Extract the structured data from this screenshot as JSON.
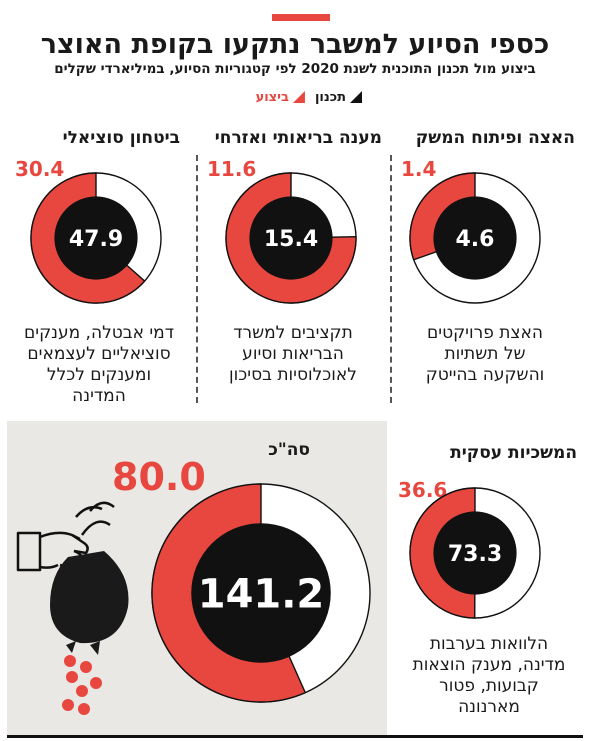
{
  "header": {
    "title": "כספי הסיוע למשבר נתקעו בקופת האוצר",
    "subtitle": "ביצוע מול תכנון התוכנית לשנת 2020 לפי קטגוריות הסיוע, במיליארדי שקלים"
  },
  "legend": {
    "planned": "תכנון",
    "executed": "ביצוע"
  },
  "colors": {
    "executed": "#e8473f",
    "planned": "#111111",
    "track": "#ffffff"
  },
  "panels": [
    {
      "id": "social",
      "title": "ביטחון סוציאלי",
      "planned": "47.9",
      "executed": "30.4",
      "description": [
        "דמי אבטלה, מענקים",
        "סוציאליים לעצמאים",
        "ומענקים לכלל",
        "המדינה"
      ]
    },
    {
      "id": "health",
      "title": "מענה בריאותי ואזרחי",
      "planned": "15.4",
      "executed": "11.6",
      "description": [
        "תקציבים למשרד",
        "הבריאות וסיוע",
        "לאוכלוסיות בסיכון"
      ]
    },
    {
      "id": "growth",
      "title": "האצה ופיתוח המשק",
      "planned": "4.6",
      "executed": "1.4",
      "description": [
        "האצת פרויקטים",
        "של תשתיות",
        "והשקעה בהייטק"
      ]
    },
    {
      "id": "business",
      "title": "המשכיות עסקית",
      "planned": "73.3",
      "executed": "36.6",
      "description": [
        "הלוואות בערבות",
        "מדינה, מענק הוצאות",
        "קבועות, פטור",
        "מארנונה"
      ]
    }
  ],
  "total": {
    "title": "סה\"כ",
    "planned": "141.2",
    "executed": "80.0"
  },
  "chart_data": {
    "type": "pie",
    "title": "כספי הסיוע למשבר נתקעו בקופת האוצר",
    "subtitle": "ביצוע מול תכנון התוכנית לשנת 2020 לפי קטגוריות הסיוע, במיליארדי שקלים",
    "series": [
      {
        "name": "תכנון",
        "values": [
          47.9,
          15.4,
          4.6,
          73.3,
          141.2
        ]
      },
      {
        "name": "ביצוע",
        "values": [
          30.4,
          11.6,
          1.4,
          36.6,
          80.0
        ]
      }
    ],
    "categories": [
      "ביטחון סוציאלי",
      "מענה בריאותי ואזרחי",
      "האצה ופיתוח המשק",
      "המשכיות עסקית",
      "סה\"כ"
    ],
    "legend": "top-right"
  }
}
